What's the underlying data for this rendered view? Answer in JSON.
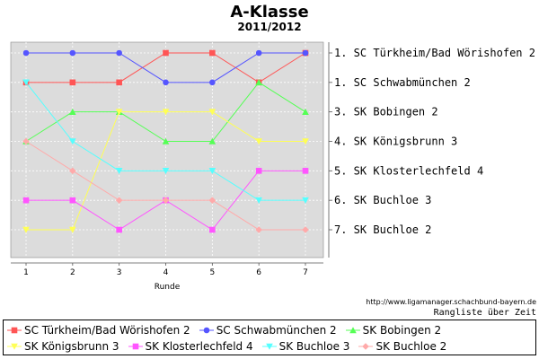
{
  "chart_data": {
    "type": "line",
    "title": "A-Klasse",
    "subtitle": "2011/2012",
    "xlabel": "Runde",
    "ylabel": "",
    "x": [
      1,
      2,
      3,
      4,
      5,
      6,
      7
    ],
    "ylim": [
      1,
      7
    ],
    "y_inverted": true,
    "grid": true,
    "legend": "bottom",
    "rank_labels": [
      "1. SC Türkheim/Bad Wörishofen 2",
      "1. SC Schwabmünchen 2",
      "3. SK Bobingen 2",
      "4. SK Königsbrunn 3",
      "5. SK Klosterlechfeld 4",
      "6. SK Buchloe 3",
      "7. SK Buchloe 2"
    ],
    "series": [
      {
        "name": "SC Türkheim/Bad Wörishofen 2",
        "color": "#ff5555",
        "marker": "square",
        "values": [
          2,
          2,
          2,
          1,
          1,
          2,
          1
        ]
      },
      {
        "name": "SC Schwabmünchen 2",
        "color": "#5555ff",
        "marker": "circle",
        "values": [
          1,
          1,
          1,
          2,
          2,
          1,
          1
        ]
      },
      {
        "name": "SK Bobingen 2",
        "color": "#55ff55",
        "marker": "triangle-up",
        "values": [
          4,
          3,
          3,
          4,
          4,
          2,
          3
        ]
      },
      {
        "name": "SK Königsbrunn 3",
        "color": "#ffff55",
        "marker": "triangle-down",
        "values": [
          7,
          7,
          3,
          3,
          3,
          4,
          4
        ]
      },
      {
        "name": "SK Klosterlechfeld 4",
        "color": "#ff55ff",
        "marker": "square",
        "values": [
          6,
          6,
          7,
          6,
          7,
          5,
          5
        ]
      },
      {
        "name": "SK Buchloe 3",
        "color": "#55ffff",
        "marker": "triangle-down",
        "values": [
          2,
          4,
          5,
          5,
          5,
          6,
          6
        ]
      },
      {
        "name": "SK Buchloe 2",
        "color": "#ffaaaa",
        "marker": "diamond",
        "values": [
          4,
          5,
          6,
          6,
          6,
          7,
          7
        ]
      }
    ]
  },
  "footer": {
    "url": "http://www.ligamanager.schachbund-bayern.de",
    "caption": "Rangliste über Zeit"
  }
}
